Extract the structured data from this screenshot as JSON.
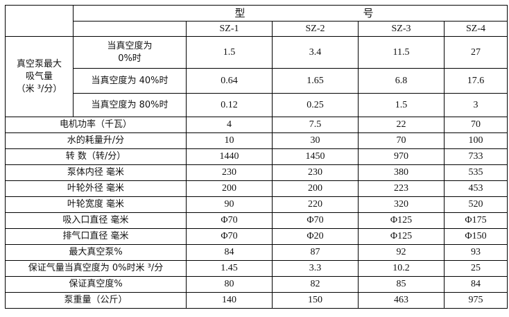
{
  "header": {
    "model_label_1": "型",
    "model_label_2": "号",
    "models": [
      "SZ-1",
      "SZ-2",
      "SZ-3",
      "SZ-4"
    ]
  },
  "group": {
    "label_line1": "真空泵最大",
    "label_line2": "吸气量",
    "label_line3": "（米 ³/分）",
    "rows": [
      {
        "label_line1": "当真空度为",
        "label_line2": "0%时",
        "values": [
          "1.5",
          "3.4",
          "11.5",
          "27"
        ]
      },
      {
        "label": "当真空度为 40%时",
        "values": [
          "0.64",
          "1.65",
          "6.8",
          "17.6"
        ]
      },
      {
        "label": "当真空度为 80%时",
        "values": [
          "0.12",
          "0.25",
          "1.5",
          "3"
        ]
      }
    ]
  },
  "rows": [
    {
      "label": "电机功率（千瓦）",
      "values": [
        "4",
        "7.5",
        "22",
        "70"
      ]
    },
    {
      "label": "水的耗量升/分",
      "values": [
        "10",
        "30",
        "70",
        "100"
      ]
    },
    {
      "label": "转 数（转/分）",
      "values": [
        "1440",
        "1450",
        "970",
        "733"
      ]
    },
    {
      "label": "泵体内径 毫米",
      "values": [
        "230",
        "230",
        "380",
        "535"
      ]
    },
    {
      "label": "叶轮外径 毫米",
      "values": [
        "200",
        "200",
        "223",
        "453"
      ]
    },
    {
      "label": "叶轮宽度 毫米",
      "values": [
        "90",
        "220",
        "320",
        "520"
      ]
    },
    {
      "label": "吸入口直径 毫米",
      "values": [
        "Φ70",
        "Φ70",
        "Φ125",
        "Φ175"
      ]
    },
    {
      "label": "排气口直径 毫米",
      "values": [
        "Φ70",
        "Φ20",
        "Φ125",
        "Φ150"
      ]
    },
    {
      "label": "最大真空泵%",
      "values": [
        "84",
        "87",
        "92",
        "93"
      ]
    },
    {
      "label": "保证气量当真空度为 0%时米 ³/分",
      "values": [
        "1.45",
        "3.3",
        "10.2",
        "25"
      ]
    },
    {
      "label": "保证真空度%",
      "values": [
        "80",
        "82",
        "85",
        "84"
      ]
    },
    {
      "label": "泵重量（公斤）",
      "values": [
        "140",
        "150",
        "463",
        "975"
      ]
    }
  ]
}
